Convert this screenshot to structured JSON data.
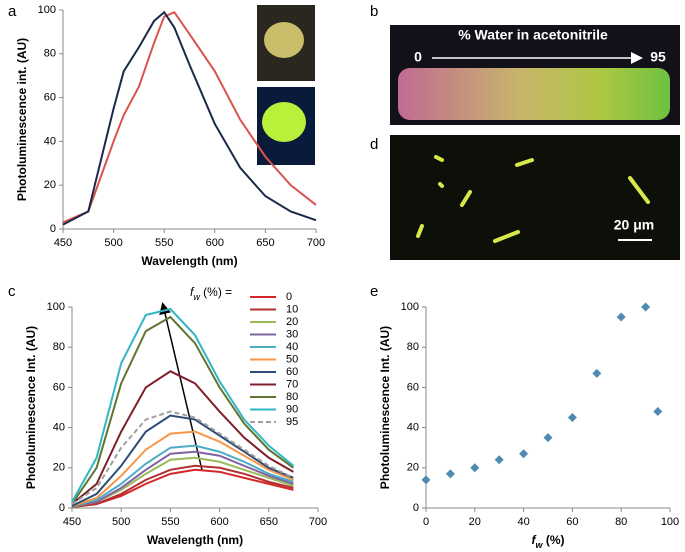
{
  "chart_data": [
    {
      "type": "line",
      "panel": "a",
      "x": [
        450,
        475,
        500,
        510,
        525,
        540,
        550,
        560,
        575,
        600,
        625,
        650,
        675,
        700
      ],
      "series": [
        {
          "color": "#d9534f",
          "values": [
            3,
            8,
            40,
            52,
            65,
            85,
            97,
            99,
            89,
            72,
            50,
            33,
            20,
            11
          ]
        },
        {
          "color": "#1b2a4a",
          "values": [
            2,
            8,
            55,
            72,
            83,
            95,
            99,
            92,
            75,
            48,
            28,
            15,
            8,
            4
          ]
        }
      ],
      "xlim": [
        450,
        700
      ],
      "xticks": [
        450,
        500,
        550,
        600,
        650,
        700
      ],
      "ylim": [
        0,
        100
      ],
      "yticks": [
        0,
        20,
        40,
        60,
        80,
        100
      ],
      "xlabel": "Wavelength  (nm)",
      "ylabel": "Photoluminescence int. (AU)"
    },
    {
      "type": "line",
      "panel": "c",
      "legend_title": [
        "f",
        "w",
        " (%) ="
      ],
      "x": [
        450,
        475,
        500,
        525,
        550,
        575,
        600,
        625,
        650,
        675
      ],
      "series": [
        {
          "name": "0",
          "color": "#d62728",
          "values": [
            0.5,
            2,
            6,
            12,
            17,
            19,
            18,
            15,
            12,
            9
          ]
        },
        {
          "name": "10",
          "color": "#b03030",
          "values": [
            0.5,
            2,
            7,
            14,
            19,
            21,
            20,
            17,
            13,
            10
          ]
        },
        {
          "name": "20",
          "color": "#9bbb59",
          "values": [
            0.7,
            3,
            9,
            17,
            24,
            25,
            23,
            19,
            15,
            11
          ]
        },
        {
          "name": "30",
          "color": "#8064a2",
          "values": [
            1,
            3,
            10,
            19,
            27,
            28,
            26,
            21,
            16,
            12
          ]
        },
        {
          "name": "40",
          "color": "#4bacc6",
          "values": [
            1,
            4,
            12,
            22,
            30,
            31,
            28,
            23,
            17,
            13
          ]
        },
        {
          "name": "50",
          "color": "#f79646",
          "values": [
            1,
            5,
            16,
            29,
            37,
            38,
            33,
            26,
            19,
            14
          ]
        },
        {
          "name": "60",
          "color": "#2c4d75",
          "values": [
            1,
            7,
            21,
            38,
            46,
            44,
            36,
            28,
            20,
            15
          ]
        },
        {
          "name": "70",
          "color": "#7f1f2a",
          "values": [
            2,
            12,
            38,
            60,
            68,
            62,
            48,
            35,
            25,
            18
          ]
        },
        {
          "name": "80",
          "color": "#5f7530",
          "values": [
            2,
            20,
            62,
            88,
            95,
            82,
            60,
            42,
            29,
            20
          ]
        },
        {
          "name": "90",
          "color": "#31b6c4",
          "values": [
            3,
            25,
            72,
            96,
            99,
            86,
            63,
            44,
            31,
            21
          ]
        },
        {
          "name": "95",
          "color": "#a0a0a0",
          "dashed": true,
          "values": [
            2,
            10,
            30,
            44,
            48,
            45,
            37,
            29,
            21,
            15
          ]
        }
      ],
      "xlim": [
        450,
        700
      ],
      "xticks": [
        450,
        500,
        550,
        600,
        650,
        700
      ],
      "ylim": [
        0,
        100
      ],
      "yticks": [
        0,
        20,
        40,
        60,
        80,
        100
      ],
      "xlabel": "Wavelength  (nm)",
      "ylabel": "Photoluminescence Int. (AU)"
    },
    {
      "type": "scatter",
      "panel": "e",
      "color": "#4f8ab3",
      "x": [
        0,
        10,
        20,
        30,
        40,
        50,
        60,
        70,
        80,
        90,
        95
      ],
      "values": [
        14,
        17,
        20,
        24,
        27,
        35,
        45,
        67,
        95,
        100,
        48
      ],
      "xlim": [
        0,
        100
      ],
      "xticks": [
        0,
        20,
        40,
        60,
        80,
        100
      ],
      "ylim": [
        0,
        100
      ],
      "yticks": [
        0,
        20,
        40,
        60,
        80,
        100
      ],
      "xlabel": [
        "f",
        "w",
        " (%)"
      ],
      "ylabel": "Photoluminescence Int. (AU)"
    }
  ],
  "photos": {
    "b": {
      "panel": "b",
      "title": "% Water in acetonitrile",
      "start": "0",
      "end": "95"
    },
    "d": {
      "panel": "d",
      "scale": "20 μm"
    }
  }
}
